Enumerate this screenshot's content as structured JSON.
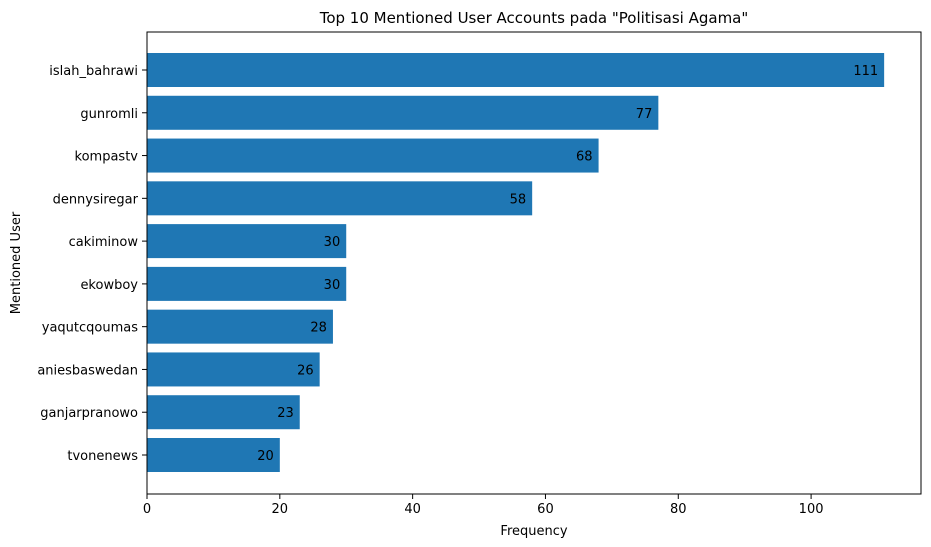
{
  "chart_data": {
    "type": "bar",
    "orientation": "horizontal",
    "title": "Top 10 Mentioned User Accounts pada \"Politisasi Agama\"",
    "xlabel": "Frequency",
    "ylabel": "Mentioned User",
    "xlim": [
      0,
      116.55
    ],
    "xticks": [
      0,
      20,
      40,
      60,
      80,
      100
    ],
    "categories": [
      "islah_bahrawi",
      "gunromli",
      "kompastv",
      "dennysiregar",
      "cakiminow",
      "ekowboy",
      "yaqutcqoumas",
      "aniesbaswedan",
      "ganjarpranowo",
      "tvonenews"
    ],
    "values": [
      111,
      77,
      68,
      58,
      30,
      30,
      28,
      26,
      23,
      20
    ],
    "bar_color": "#1f77b4",
    "grid": false,
    "legend": "none"
  }
}
